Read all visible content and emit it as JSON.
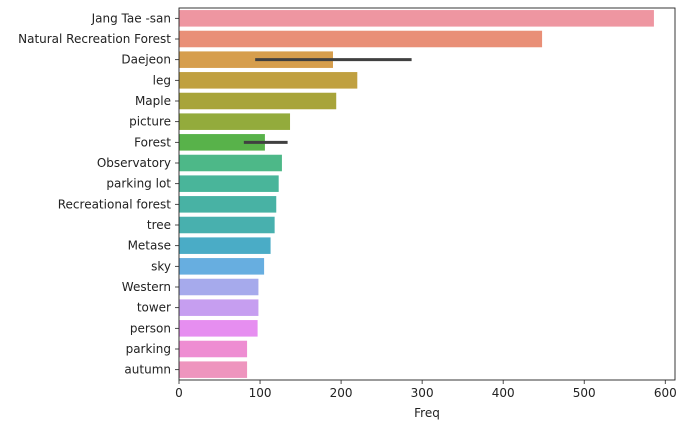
{
  "chart_data": {
    "type": "bar",
    "orientation": "horizontal",
    "title": "",
    "xlabel": "Freq",
    "ylabel": "",
    "xlim": [
      0,
      612
    ],
    "xticks": [
      0,
      100,
      200,
      300,
      400,
      500,
      600
    ],
    "grid": false,
    "categories": [
      "Jang Tae -san",
      "Natural Recreation Forest",
      "Daejeon",
      "leg",
      "Maple",
      "picture",
      "Forest",
      "Observatory",
      "parking lot",
      "Recreational forest",
      "tree",
      "Metase",
      "sky",
      "Western",
      "tower",
      "person",
      "parking",
      "autumn"
    ],
    "values": [
      586,
      448,
      190,
      220,
      194,
      137,
      106,
      127,
      123,
      120,
      118,
      113,
      105,
      98,
      98,
      97,
      84,
      84
    ],
    "error_bars": [
      {
        "category": "Daejeon",
        "low": 94,
        "high": 287
      },
      {
        "category": "Forest",
        "low": 80,
        "high": 134
      }
    ],
    "colors": [
      "#ee96a1",
      "#e98f77",
      "#d69e4d",
      "#c0a040",
      "#a8a43a",
      "#93ab3c",
      "#58b24a",
      "#4db888",
      "#49b59a",
      "#48b2a4",
      "#48b0ae",
      "#4aacc6",
      "#67aee0",
      "#a6aaec",
      "#c69ef0",
      "#e68ef0",
      "#ee8dd2",
      "#ee95be"
    ],
    "error_bar_color": "#404040"
  }
}
